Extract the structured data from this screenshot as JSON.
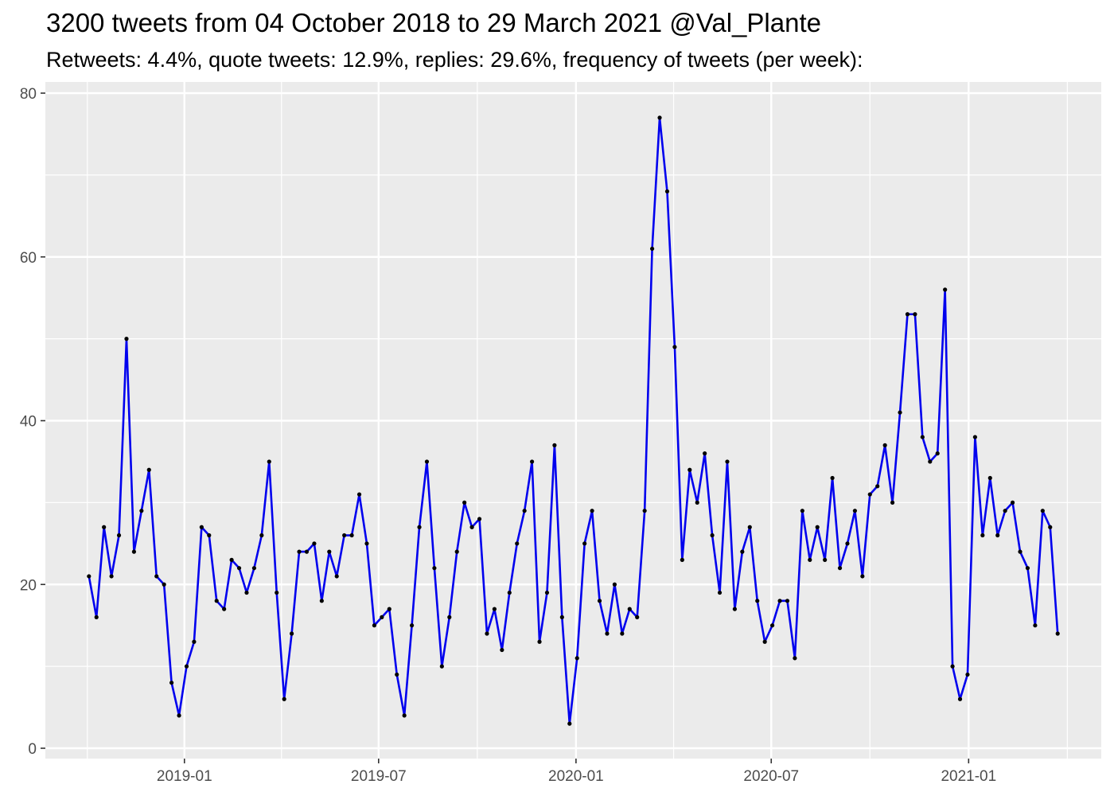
{
  "chart_data": {
    "type": "line",
    "title": "3200 tweets from 04 October 2018 to 29 March 2021 @Val_Plante",
    "subtitle": "Retweets: 4.4%, quote tweets: 12.9%, replies: 29.6%, frequency of tweets (per week):",
    "xlabel": "",
    "ylabel": "",
    "x_start": "2018-10-04",
    "x_step_days": 7,
    "ylim": [
      0,
      80
    ],
    "yticks": [
      0,
      20,
      40,
      60,
      80
    ],
    "xticks": [
      "2019-01",
      "2019-07",
      "2020-01",
      "2020-07",
      "2021-01"
    ],
    "grid": true,
    "line_color": "#0000ee",
    "point_color": "#000000",
    "panel_color": "#ebebeb",
    "series": [
      {
        "values": [
          21,
          16,
          27,
          21,
          26,
          50,
          24,
          29,
          34,
          21,
          20,
          8,
          4,
          10,
          13,
          27,
          26,
          18,
          17,
          23,
          22,
          19,
          22,
          26,
          35,
          19,
          6,
          14,
          24,
          24,
          25,
          18,
          24,
          21,
          26,
          26,
          31,
          25,
          15,
          16,
          17,
          9,
          4,
          15,
          27,
          35,
          22,
          10,
          16,
          24,
          30,
          27,
          28,
          14,
          17,
          12,
          19,
          25,
          29,
          35,
          13,
          19,
          37,
          16,
          3,
          11,
          25,
          29,
          18,
          14,
          20,
          14,
          17,
          16,
          29,
          61,
          77,
          68,
          49,
          23,
          34,
          30,
          36,
          26,
          19,
          35,
          17,
          24,
          27,
          18,
          13,
          15,
          18,
          18,
          11,
          29,
          23,
          27,
          23,
          33,
          22,
          25,
          29,
          21,
          31,
          32,
          37,
          30,
          41,
          53,
          53,
          38,
          35,
          36,
          56,
          10,
          6,
          9,
          38,
          26,
          33,
          26,
          29,
          30,
          24,
          22,
          15,
          29,
          27,
          14
        ]
      }
    ]
  }
}
